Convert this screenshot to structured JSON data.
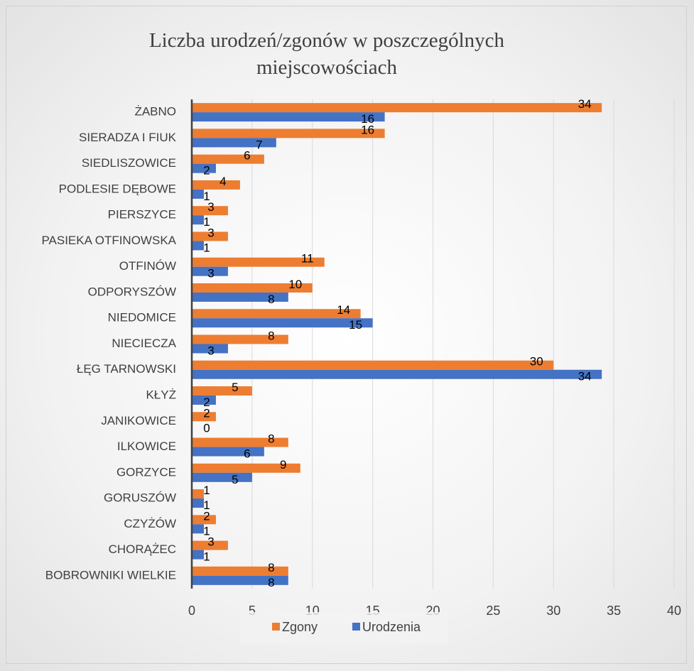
{
  "chart_data": {
    "type": "barh",
    "title": "Liczba urodzeń/zgonów w poszczególnych miejscowościach",
    "categories": [
      "ŻABNO",
      "SIERADZA I FIUK",
      "SIEDLISZOWICE",
      "PODLESIE DĘBOWE",
      "PIERSZYCE",
      "PASIEKA OTFINOWSKA",
      "OTFINÓW",
      "ODPORYSZÓW",
      "NIEDOMICE",
      "NIECIECZA",
      "ŁĘG TARNOWSKI",
      "KŁYŻ",
      "JANIKOWICE",
      "ILKOWICE",
      "GORZYCE",
      "GORUSZÓW",
      "CZYŻÓW",
      "CHORĄŻEC",
      "BOBROWNIKI WIELKIE"
    ],
    "series": [
      {
        "name": "Zgony",
        "color": "#ed7d31",
        "values": [
          34,
          16,
          6,
          4,
          3,
          3,
          11,
          10,
          14,
          8,
          30,
          5,
          2,
          8,
          9,
          1,
          2,
          3,
          8
        ]
      },
      {
        "name": "Urodzenia",
        "color": "#4472c4",
        "values": [
          16,
          7,
          2,
          1,
          1,
          1,
          3,
          8,
          15,
          3,
          34,
          2,
          0,
          6,
          5,
          1,
          1,
          1,
          8
        ]
      }
    ],
    "xlim": [
      0,
      40
    ],
    "xticks": [
      0,
      5,
      10,
      15,
      20,
      25,
      30,
      35,
      40
    ],
    "grid": true,
    "legend": "bottom"
  }
}
